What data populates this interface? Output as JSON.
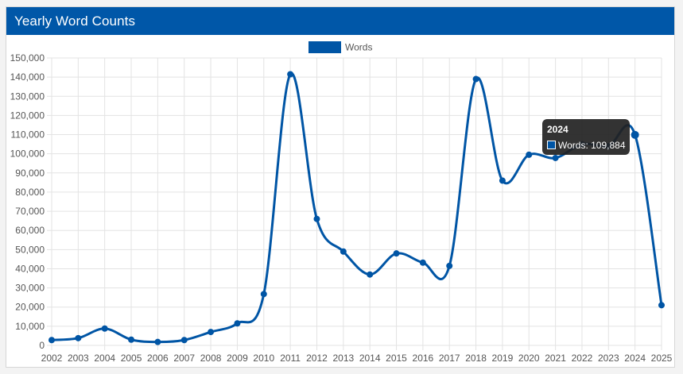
{
  "panel": {
    "title": "Yearly Word Counts"
  },
  "colors": {
    "header_bg": "#0057a8",
    "line": "#0055a5",
    "grid": "#e3e3e3",
    "tooltip_bg": "#222222"
  },
  "tooltip": {
    "title": "2024",
    "label": "Words: 109,884",
    "year": "2024"
  },
  "chart_data": {
    "type": "line",
    "title": "",
    "xlabel": "",
    "ylabel": "",
    "legend_position": "top-center",
    "grid": true,
    "ylim": [
      0,
      150000
    ],
    "y_ticks": [
      0,
      10000,
      20000,
      30000,
      40000,
      50000,
      60000,
      70000,
      80000,
      90000,
      100000,
      110000,
      120000,
      130000,
      140000,
      150000
    ],
    "y_tick_labels": [
      "0",
      "10,000",
      "20,000",
      "30,000",
      "40,000",
      "50,000",
      "60,000",
      "70,000",
      "80,000",
      "90,000",
      "100,000",
      "110,000",
      "120,000",
      "130,000",
      "140,000",
      "150,000"
    ],
    "categories": [
      "2002",
      "2003",
      "2004",
      "2005",
      "2006",
      "2007",
      "2008",
      "2009",
      "2010",
      "2011",
      "2012",
      "2013",
      "2014",
      "2015",
      "2016",
      "2017",
      "2018",
      "2019",
      "2020",
      "2021",
      "2022",
      "2023",
      "2024",
      "2025"
    ],
    "series": [
      {
        "name": "Words",
        "values": [
          2800,
          3800,
          8800,
          3000,
          1800,
          2800,
          7000,
          11500,
          26800,
          141500,
          66000,
          49000,
          37000,
          48000,
          43200,
          41500,
          139000,
          86000,
          99500,
          97800,
          105000,
          104000,
          109884,
          21000
        ]
      }
    ]
  }
}
